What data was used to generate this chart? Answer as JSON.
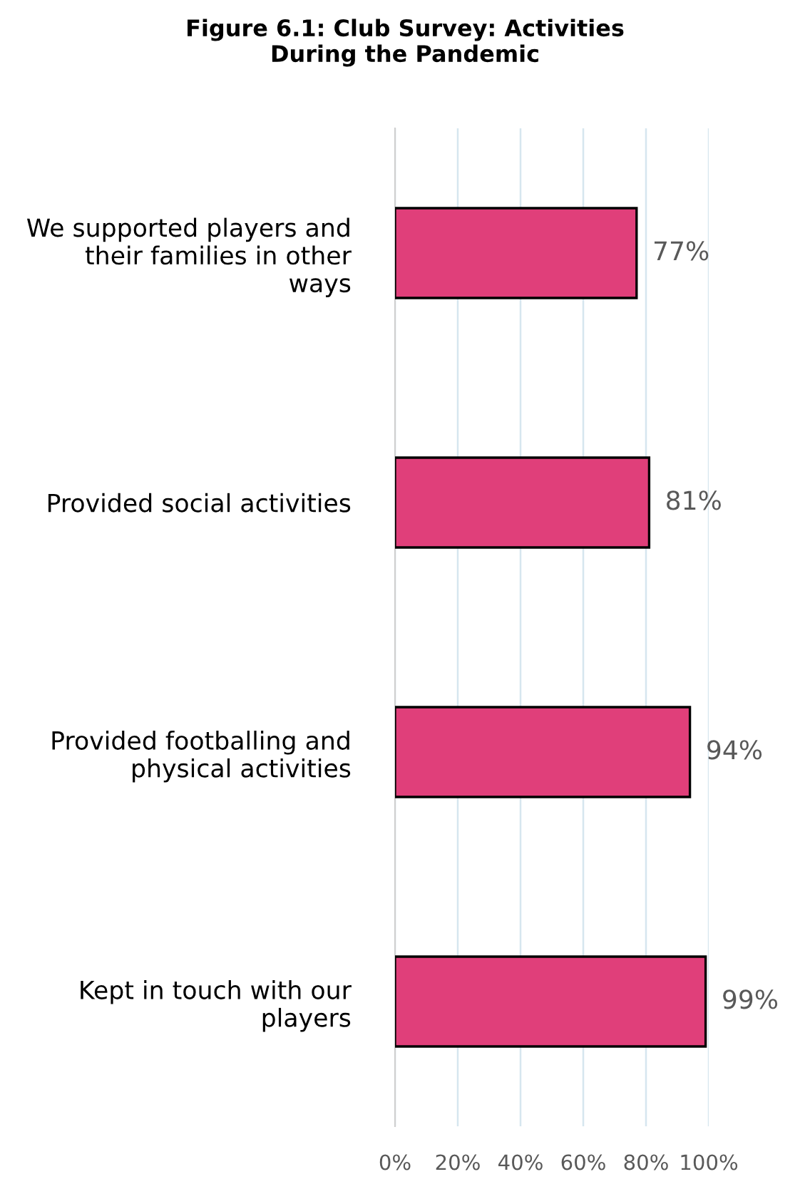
{
  "chart_data": {
    "type": "bar",
    "orientation": "horizontal",
    "title": "Figure 6.1: Club Survey: Activities During the Pandemic",
    "categories": [
      "We supported players and their families in other ways",
      "Provided social activities",
      "Provided footballing and physical activities",
      "Kept in touch with our players"
    ],
    "values": [
      77,
      81,
      94,
      99
    ],
    "color": "#e03f7a",
    "value_labels": [
      "77%",
      "81%",
      "94%",
      "99%"
    ],
    "xlim": [
      0,
      100
    ],
    "xticks": [
      {
        "value": 0,
        "label": "0%"
      },
      {
        "value": 20,
        "label": "20%"
      },
      {
        "value": 40,
        "label": "40%"
      },
      {
        "value": 60,
        "label": "60%"
      },
      {
        "value": 80,
        "label": "80%"
      },
      {
        "value": 100,
        "label": "100%"
      }
    ],
    "grid": "x"
  }
}
